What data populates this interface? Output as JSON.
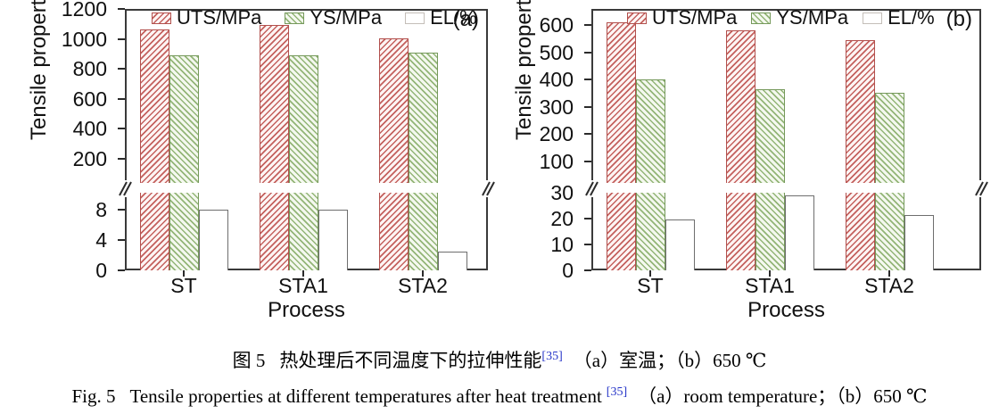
{
  "style": {
    "uts_line": "#c4615e",
    "uts_border": "#b2504d",
    "uts_fill": "#fdf5f4",
    "ys_line": "#93b577",
    "ys_border": "#75995b",
    "ys_fill": "#f4f8ef",
    "el_border": "#6e6e6e",
    "el_fill": "#ffffff",
    "el_legend_border": "#c4beb8",
    "axis_color": "#2b2b2b",
    "ref_color": "#2635c8"
  },
  "chart_data": [
    {
      "type": "bar",
      "panel_label": "(a)",
      "ylabel": "Tensile properties/MPa",
      "xlabel": "Process",
      "categories": [
        "ST",
        "STA1",
        "STA2"
      ],
      "series": [
        {
          "name": "UTS/MPa",
          "style": "uts",
          "axis": "upper",
          "values": [
            1060,
            1090,
            1005
          ]
        },
        {
          "name": "YS/MPa",
          "style": "ys",
          "axis": "upper",
          "values": [
            890,
            890,
            905
          ]
        },
        {
          "name": "EL/%",
          "style": "el",
          "axis": "lower",
          "values": [
            8,
            8,
            2.5
          ]
        }
      ],
      "axis_break": true,
      "legend_position": "top-inside",
      "upper_axis": {
        "ticks": [
          200,
          400,
          600,
          800,
          1000,
          1200
        ],
        "top_value": 1200,
        "break_value": 36
      },
      "lower_axis": {
        "ticks": [
          0,
          4,
          8
        ],
        "top_value": 10.3
      }
    },
    {
      "type": "bar",
      "panel_label": "(b)",
      "ylabel": "Tensile properties/MPa",
      "xlabel": "Process",
      "categories": [
        "ST",
        "STA1",
        "STA2"
      ],
      "series": [
        {
          "name": "UTS/MPa",
          "style": "uts",
          "axis": "upper",
          "values": [
            610,
            580,
            545
          ]
        },
        {
          "name": "YS/MPa",
          "style": "ys",
          "axis": "upper",
          "values": [
            400,
            365,
            350
          ]
        },
        {
          "name": "EL/%",
          "style": "el",
          "axis": "lower",
          "values": [
            19.5,
            29,
            21.5
          ]
        }
      ],
      "axis_break": true,
      "legend_position": "top-inside",
      "upper_axis": {
        "ticks": [
          100,
          200,
          300,
          400,
          500,
          600
        ],
        "top_value": 660,
        "break_value": 20
      },
      "lower_axis": {
        "ticks": [
          0,
          10,
          20,
          30
        ],
        "top_value": 30
      }
    }
  ],
  "caption": {
    "zh": {
      "prefix": "图 5",
      "main": "热处理后不同温度下的拉伸性能",
      "ref": "[35]",
      "suffix": "（a）室温；（b）650 ℃"
    },
    "en": {
      "prefix": "Fig. 5",
      "main": "Tensile properties at different temperatures after heat treatment",
      "ref": "[35]",
      "suffix": "（a）room temperature；（b）650 ℃"
    }
  }
}
